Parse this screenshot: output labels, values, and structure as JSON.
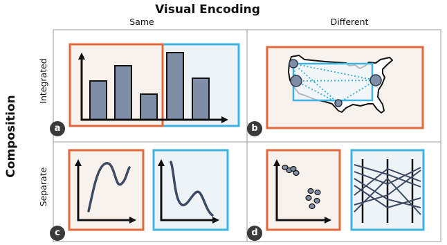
{
  "header": {
    "title": "Visual Encoding"
  },
  "columns": [
    {
      "label": "Same"
    },
    {
      "label": "Different"
    }
  ],
  "rows": [
    {
      "label": "Integrated"
    },
    {
      "label": "Separate"
    }
  ],
  "side_title": "Composition",
  "panels": [
    {
      "id": "a",
      "badge": "a"
    },
    {
      "id": "b",
      "badge": "b"
    },
    {
      "id": "c",
      "badge": "c"
    },
    {
      "id": "d",
      "badge": "d"
    }
  ],
  "colors": {
    "orange": "#e2683c",
    "blue": "#3fb3e0",
    "orange_fill": "#f8f1ec",
    "blue_fill": "#eef3f7",
    "bar_fill": "#7f8ea6",
    "line_stroke": "#3d4a63",
    "grid": "#9a9a9a"
  }
}
